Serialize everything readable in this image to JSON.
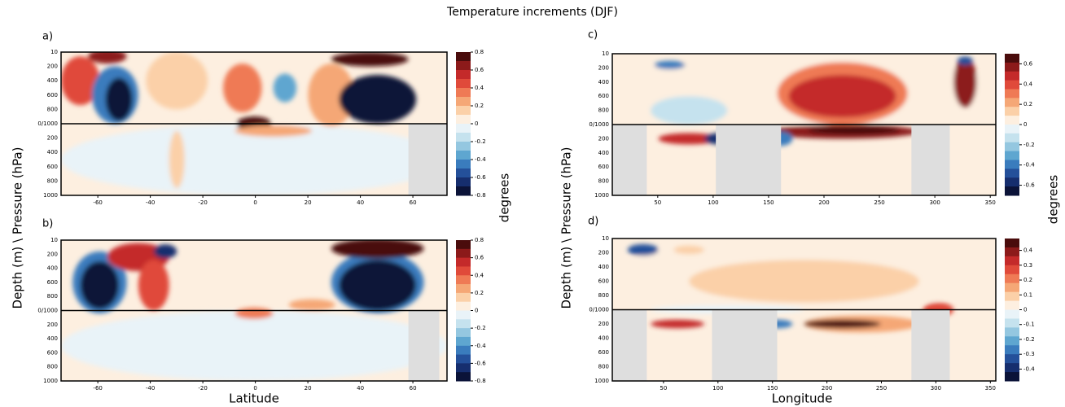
{
  "figure": {
    "title": "Temperature increments (DJF)",
    "ylabel": "Depth (m) \\ Pressure (hPa)",
    "colorbar_label": "degrees",
    "xlabel_left": "Latitude",
    "xlabel_right": "Longitude"
  },
  "chart_data": [
    {
      "type": "contour",
      "label": "a)",
      "xlim": [
        -74,
        73
      ],
      "xticks": [
        -60,
        -40,
        -20,
        0,
        20,
        40,
        60
      ],
      "y_labels": [
        "10",
        "200",
        "400",
        "600",
        "800",
        "0/1000",
        "200",
        "400",
        "600",
        "800",
        "1000"
      ],
      "clim": [
        -0.8,
        0.8
      ],
      "cticks": [
        0.8,
        0.6,
        0.4,
        0.2,
        0,
        -0.2,
        -0.4,
        -0.6,
        -0.8
      ],
      "colors": [
        "#4a0c0c",
        "#8c1a1a",
        "#c42a2a",
        "#e04a3a",
        "#ef7a55",
        "#f5a776",
        "#fbd0a8",
        "#fdefe0",
        "#e9f3f8",
        "#c5e2ee",
        "#94c7e0",
        "#5ea6d0",
        "#3a7cbd",
        "#24509a",
        "#162e6e",
        "#0b1338"
      ]
    },
    {
      "type": "contour",
      "label": "b)",
      "xlim": [
        -74,
        73
      ],
      "xticks": [
        -60,
        -40,
        -20,
        0,
        20,
        40,
        60
      ],
      "y_labels": [
        "10",
        "200",
        "400",
        "600",
        "800",
        "0/1000",
        "200",
        "400",
        "600",
        "800",
        "1000"
      ],
      "clim": [
        -0.8,
        0.8
      ],
      "cticks": [
        0.8,
        0.6,
        0.4,
        0.2,
        0,
        -0.2,
        -0.4,
        -0.6,
        -0.8
      ],
      "colors": [
        "#4a0c0c",
        "#8c1a1a",
        "#c42a2a",
        "#e04a3a",
        "#ef7a55",
        "#f5a776",
        "#fbd0a8",
        "#fdefe0",
        "#e9f3f8",
        "#c5e2ee",
        "#94c7e0",
        "#5ea6d0",
        "#3a7cbd",
        "#24509a",
        "#162e6e",
        "#0b1338"
      ]
    },
    {
      "type": "contour",
      "label": "c)",
      "xlim": [
        9,
        355
      ],
      "xticks": [
        50,
        100,
        150,
        200,
        250,
        300,
        350
      ],
      "y_labels": [
        "10",
        "200",
        "400",
        "600",
        "800",
        "0/1000",
        "200",
        "400",
        "600",
        "800",
        "1000"
      ],
      "clim": [
        -0.7,
        0.7
      ],
      "cticks": [
        0.6,
        0.4,
        0.2,
        0,
        -0.2,
        -0.4,
        -0.6
      ],
      "colors": [
        "#4a0c0c",
        "#8c1a1a",
        "#c42a2a",
        "#e04a3a",
        "#ef7a55",
        "#f5a776",
        "#fbd0a8",
        "#fdefe0",
        "#e9f3f8",
        "#c5e2ee",
        "#94c7e0",
        "#5ea6d0",
        "#3a7cbd",
        "#24509a",
        "#162e6e",
        "#0b1338"
      ]
    },
    {
      "type": "contour",
      "label": "d)",
      "xlim": [
        3,
        355
      ],
      "xticks": [
        50,
        100,
        150,
        200,
        250,
        300,
        350
      ],
      "y_labels": [
        "10",
        "200",
        "400",
        "600",
        "800",
        "0/1000",
        "200",
        "400",
        "600",
        "800",
        "1000"
      ],
      "clim": [
        -0.48,
        0.48
      ],
      "cticks": [
        0.4,
        0.3,
        0.2,
        0.1,
        0,
        -0.1,
        -0.2,
        -0.3,
        -0.4
      ],
      "colors": [
        "#4a0c0c",
        "#8c1a1a",
        "#c42a2a",
        "#e04a3a",
        "#ef7a55",
        "#f5a776",
        "#fbd0a8",
        "#fdefe0",
        "#e9f3f8",
        "#c5e2ee",
        "#94c7e0",
        "#5ea6d0",
        "#3a7cbd",
        "#24509a",
        "#162e6e",
        "#0b1338"
      ]
    }
  ]
}
